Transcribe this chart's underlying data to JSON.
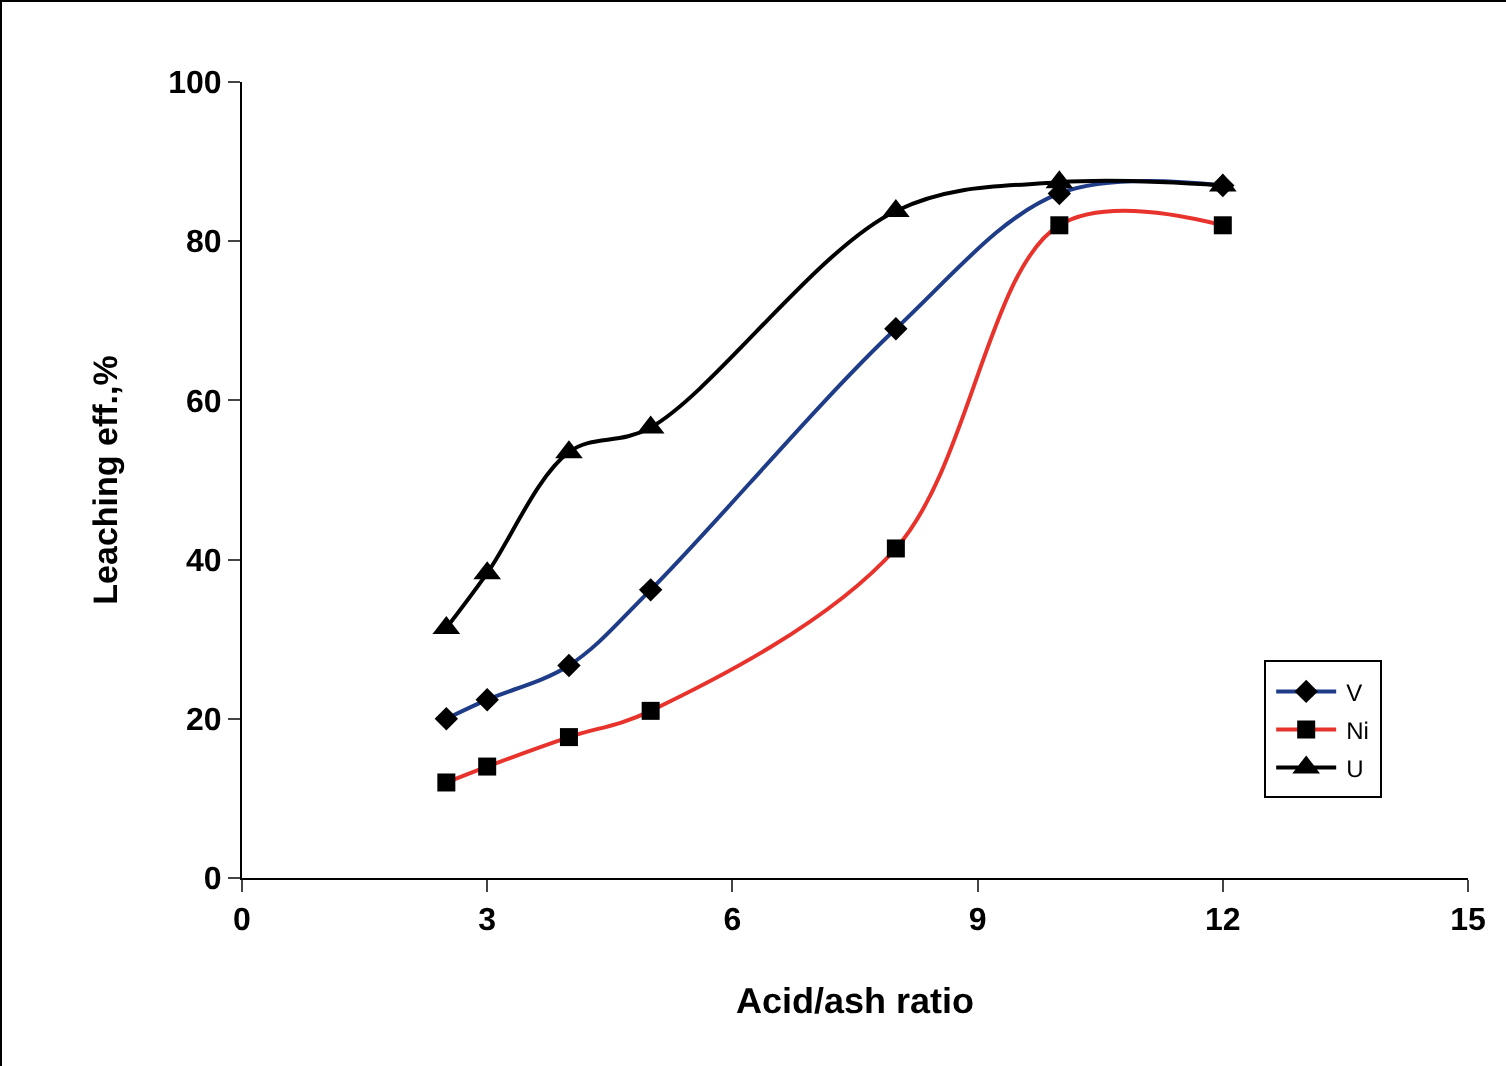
{
  "chart_data": {
    "type": "line",
    "xlabel": "Acid/ash ratio",
    "ylabel": "Leaching eff.,%",
    "x": [
      2.5,
      3,
      4,
      5,
      8,
      10,
      12
    ],
    "series": [
      {
        "name": "V",
        "color": "#1f3c88",
        "marker": "diamond",
        "values": [
          20,
          22.4,
          26.7,
          36.2,
          69,
          86,
          87
        ]
      },
      {
        "name": "Ni",
        "color": "#e8322c",
        "marker": "square",
        "values": [
          12,
          14,
          17.7,
          21,
          41.4,
          82,
          82
        ]
      },
      {
        "name": "U",
        "color": "#000000",
        "marker": "triangle",
        "values": [
          31.4,
          38.3,
          53.5,
          56.6,
          83.8,
          87.4,
          87
        ]
      }
    ],
    "xlim": [
      0,
      15
    ],
    "xticks": [
      0,
      3,
      6,
      9,
      12,
      15
    ],
    "ylim": [
      0,
      100
    ],
    "yticks": [
      0,
      20,
      40,
      60,
      80,
      100
    ],
    "grid": false,
    "legend": "bottom right",
    "line_style": "solid"
  }
}
